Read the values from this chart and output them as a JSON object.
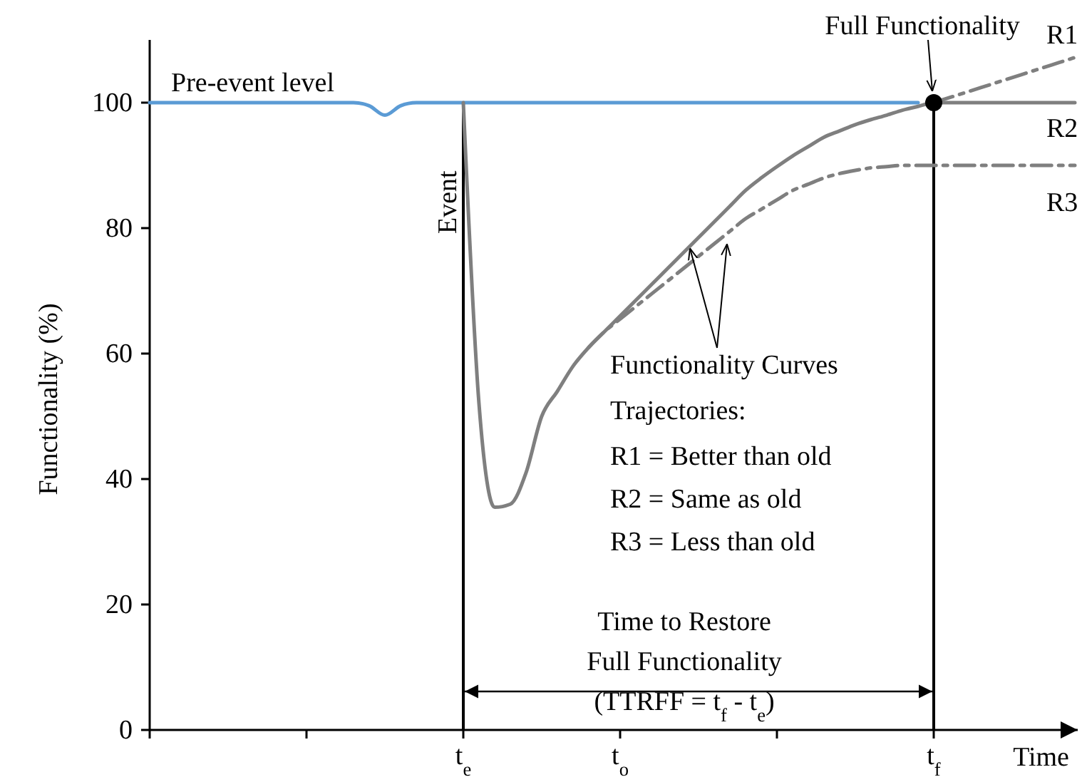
{
  "chart_data": {
    "type": "line",
    "xlabel": "Time",
    "ylabel": "Functionality (%)",
    "categories": [
      null,
      null,
      null,
      null,
      null,
      null,
      null,
      null,
      null,
      null,
      null,
      null,
      null,
      null,
      null,
      null,
      null,
      null,
      null,
      null,
      "t$_{e}$",
      null,
      null,
      null,
      null,
      null,
      null,
      null,
      null,
      null,
      "t$_{o}$",
      null,
      null,
      null,
      null,
      null,
      null,
      null,
      null,
      null,
      null,
      null,
      null,
      null,
      null,
      null,
      null,
      null,
      null,
      null,
      "t$_{f}$",
      null,
      null,
      null,
      null,
      null,
      null,
      null,
      null,
      null
    ],
    "ylim": [
      0,
      110
    ],
    "yticks": [
      0,
      20,
      40,
      60,
      80,
      100
    ],
    "series": [
      {
        "name": "Pre-event level",
        "color": "#5b9bd5",
        "values": [
          100,
          100,
          100,
          100,
          100,
          100,
          100,
          100,
          100,
          100,
          100,
          100,
          100,
          100,
          99.5,
          98,
          99.5,
          100,
          100,
          100,
          100,
          100,
          100,
          100,
          100,
          100,
          100,
          100,
          100,
          100,
          100,
          100,
          100,
          100,
          100,
          100,
          100,
          100,
          100,
          100,
          100,
          100,
          100,
          100,
          100,
          100,
          100,
          100,
          100,
          100,
          null,
          null,
          null,
          null,
          null,
          null,
          null,
          null,
          null,
          null
        ]
      },
      {
        "name": "R2",
        "color": "#7f7f7f",
        "line_style": "solid",
        "values": [
          null,
          null,
          null,
          null,
          null,
          null,
          null,
          null,
          null,
          null,
          null,
          null,
          null,
          null,
          null,
          null,
          null,
          null,
          null,
          null,
          100,
          52,
          35.5,
          36,
          41,
          50,
          54,
          58,
          61,
          63.5,
          66,
          68.5,
          71,
          73.5,
          76,
          78.5,
          81,
          83.5,
          86,
          88,
          89.8,
          91.5,
          93,
          94.5,
          95.5,
          96.5,
          97.3,
          98,
          98.8,
          99.4,
          100,
          100,
          100,
          100,
          100,
          100,
          100,
          100,
          100,
          100
        ]
      },
      {
        "name": "R1",
        "color": "#7f7f7f",
        "line_style": "dashed",
        "values": [
          null,
          null,
          null,
          null,
          null,
          null,
          null,
          null,
          null,
          null,
          null,
          null,
          null,
          null,
          null,
          null,
          null,
          null,
          null,
          null,
          null,
          null,
          null,
          null,
          null,
          null,
          null,
          null,
          null,
          null,
          null,
          null,
          null,
          null,
          null,
          null,
          null,
          null,
          null,
          null,
          null,
          null,
          null,
          null,
          null,
          null,
          null,
          null,
          null,
          null,
          100,
          100.8,
          101.6,
          102.4,
          103.2,
          104,
          104.8,
          105.6,
          106.4,
          107.2
        ]
      },
      {
        "name": "R3",
        "color": "#7f7f7f",
        "line_style": "dashed",
        "values": [
          null,
          null,
          null,
          null,
          null,
          null,
          null,
          null,
          null,
          null,
          null,
          null,
          null,
          null,
          null,
          null,
          null,
          null,
          null,
          null,
          null,
          null,
          null,
          null,
          null,
          null,
          null,
          null,
          61,
          63.5,
          65.5,
          67.5,
          69.5,
          71.5,
          73.5,
          75.5,
          77.5,
          79.5,
          81.5,
          83,
          84.5,
          86,
          87,
          88,
          88.7,
          89.2,
          89.6,
          89.8,
          90,
          90,
          90,
          90,
          90,
          90,
          90,
          90,
          90,
          90,
          90,
          90
        ]
      },
      {
        "type": "scatter",
        "marker": "circle",
        "color": "#000000",
        "x": [
          "t$_{f}$"
        ],
        "values": [
          100
        ]
      }
    ],
    "ref_lines": [
      {
        "axis": "x",
        "value": "t$_{e}$",
        "label": "Event",
        "color": "#000000"
      },
      {
        "axis": "x",
        "value": "t$_{f}$",
        "label": null,
        "color": "#000000"
      }
    ],
    "annotations": [
      {
        "text": "Full Functionality",
        "x": "t$_{f}$",
        "y": 100
      },
      {
        "text": "Functionality Curves",
        "y": 77
      },
      "Trajectories:",
      "R1 = Better than old",
      "R2 = Same as old",
      "R3 = Less than old",
      "Time to Restore",
      "Full Functionality",
      "(TTRFF = t$_{f}$ - t$_{e}$)"
    ],
    "legend": false
  }
}
